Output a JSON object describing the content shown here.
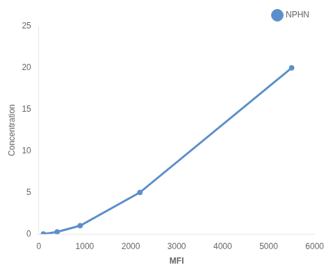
{
  "chart_data": {
    "type": "line",
    "x": [
      100,
      400,
      900,
      2200,
      5500
    ],
    "series": [
      {
        "name": "NPHN",
        "color": "#5b8fc9",
        "values": [
          0.0,
          0.25,
          1.0,
          5.0,
          20.0
        ],
        "marker": "circle",
        "line_style": "solid"
      }
    ],
    "xlabel": "MFI",
    "ylabel": "Concentration",
    "xlim": [
      0,
      6000
    ],
    "ylim": [
      0,
      25
    ],
    "xticks": [
      0,
      1000,
      2000,
      3000,
      4000,
      5000,
      6000
    ],
    "yticks": [
      0,
      5,
      10,
      15,
      20,
      25
    ],
    "grid": false,
    "legend": "upper right"
  }
}
